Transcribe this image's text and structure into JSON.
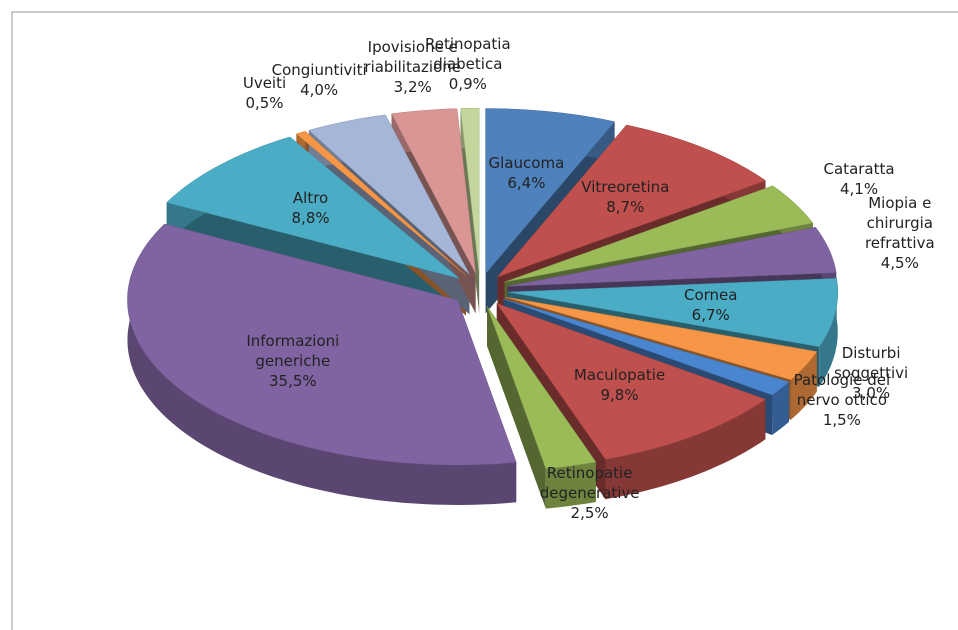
{
  "chart_data": {
    "type": "pie",
    "categories": [
      "Glaucoma",
      "Vitreoretina",
      "Cataratta",
      "Miopia e chirurgia refrattiva",
      "Cornea",
      "Disturbi soggettivi",
      "Patologie del nervo ottico",
      "Maculopatie",
      "Retinopatie degenerative",
      "Informazioni generiche",
      "Altro",
      "Uveiti",
      "Congiuntiviti",
      "Ipovisione e riabilitazione",
      "Retinopatia diabetica"
    ],
    "values": [
      6.4,
      8.7,
      4.1,
      4.5,
      6.7,
      3.0,
      1.5,
      9.8,
      2.5,
      35.5,
      8.8,
      0.5,
      4.0,
      3.2,
      0.9
    ],
    "value_labels": [
      "6,4%",
      "8,7%",
      "4,1%",
      "4,5%",
      "6,7%",
      "3,0%",
      "1,5%",
      "9,8%",
      "2,5%",
      "35,5%",
      "8,8%",
      "0,5%",
      "4,0%",
      "3,2%",
      "0,9%"
    ],
    "colors": [
      "#4f81bd",
      "#c0504d",
      "#9bbb59",
      "#8064a2",
      "#4bacc6",
      "#f79646",
      "#4a86d0",
      "#c0504d",
      "#9bbb59",
      "#8064a2",
      "#4bacc6",
      "#f79646",
      "#a5b6d8",
      "#d99694",
      "#c3d69b"
    ]
  }
}
